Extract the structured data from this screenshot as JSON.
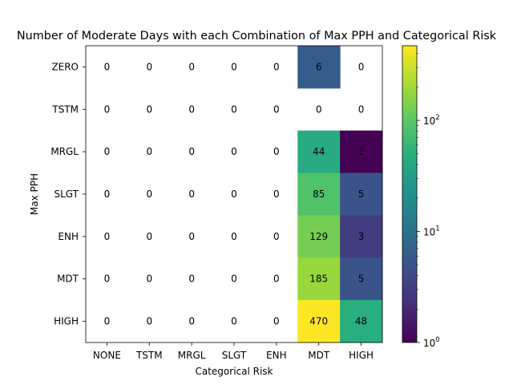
{
  "chart_data": {
    "type": "heatmap",
    "title": "Number of Moderate Days with each Combination of Max PPH and Categorical Risk",
    "xlabel": "Categorical Risk",
    "ylabel": "Max PPH",
    "x_categories": [
      "NONE",
      "TSTM",
      "MRGL",
      "SLGT",
      "ENH",
      "MDT",
      "HIGH"
    ],
    "y_categories": [
      "ZERO",
      "TSTM",
      "MRGL",
      "SLGT",
      "ENH",
      "MDT",
      "HIGH"
    ],
    "values": [
      [
        0,
        0,
        0,
        0,
        0,
        6,
        0
      ],
      [
        0,
        0,
        0,
        0,
        0,
        0,
        0
      ],
      [
        0,
        0,
        0,
        0,
        0,
        44,
        1
      ],
      [
        0,
        0,
        0,
        0,
        0,
        85,
        5
      ],
      [
        0,
        0,
        0,
        0,
        0,
        129,
        3
      ],
      [
        0,
        0,
        0,
        0,
        0,
        185,
        5
      ],
      [
        0,
        0,
        0,
        0,
        0,
        470,
        48
      ]
    ],
    "color_scale": "log",
    "colormap": "viridis",
    "colorbar_range": [
      1,
      470
    ],
    "colorbar_ticks": [
      {
        "value": 1,
        "base": "10",
        "exp": "0"
      },
      {
        "value": 10,
        "base": "10",
        "exp": "1"
      },
      {
        "value": 100,
        "base": "10",
        "exp": "2"
      }
    ],
    "zero_cells": "blank",
    "grid": false
  }
}
